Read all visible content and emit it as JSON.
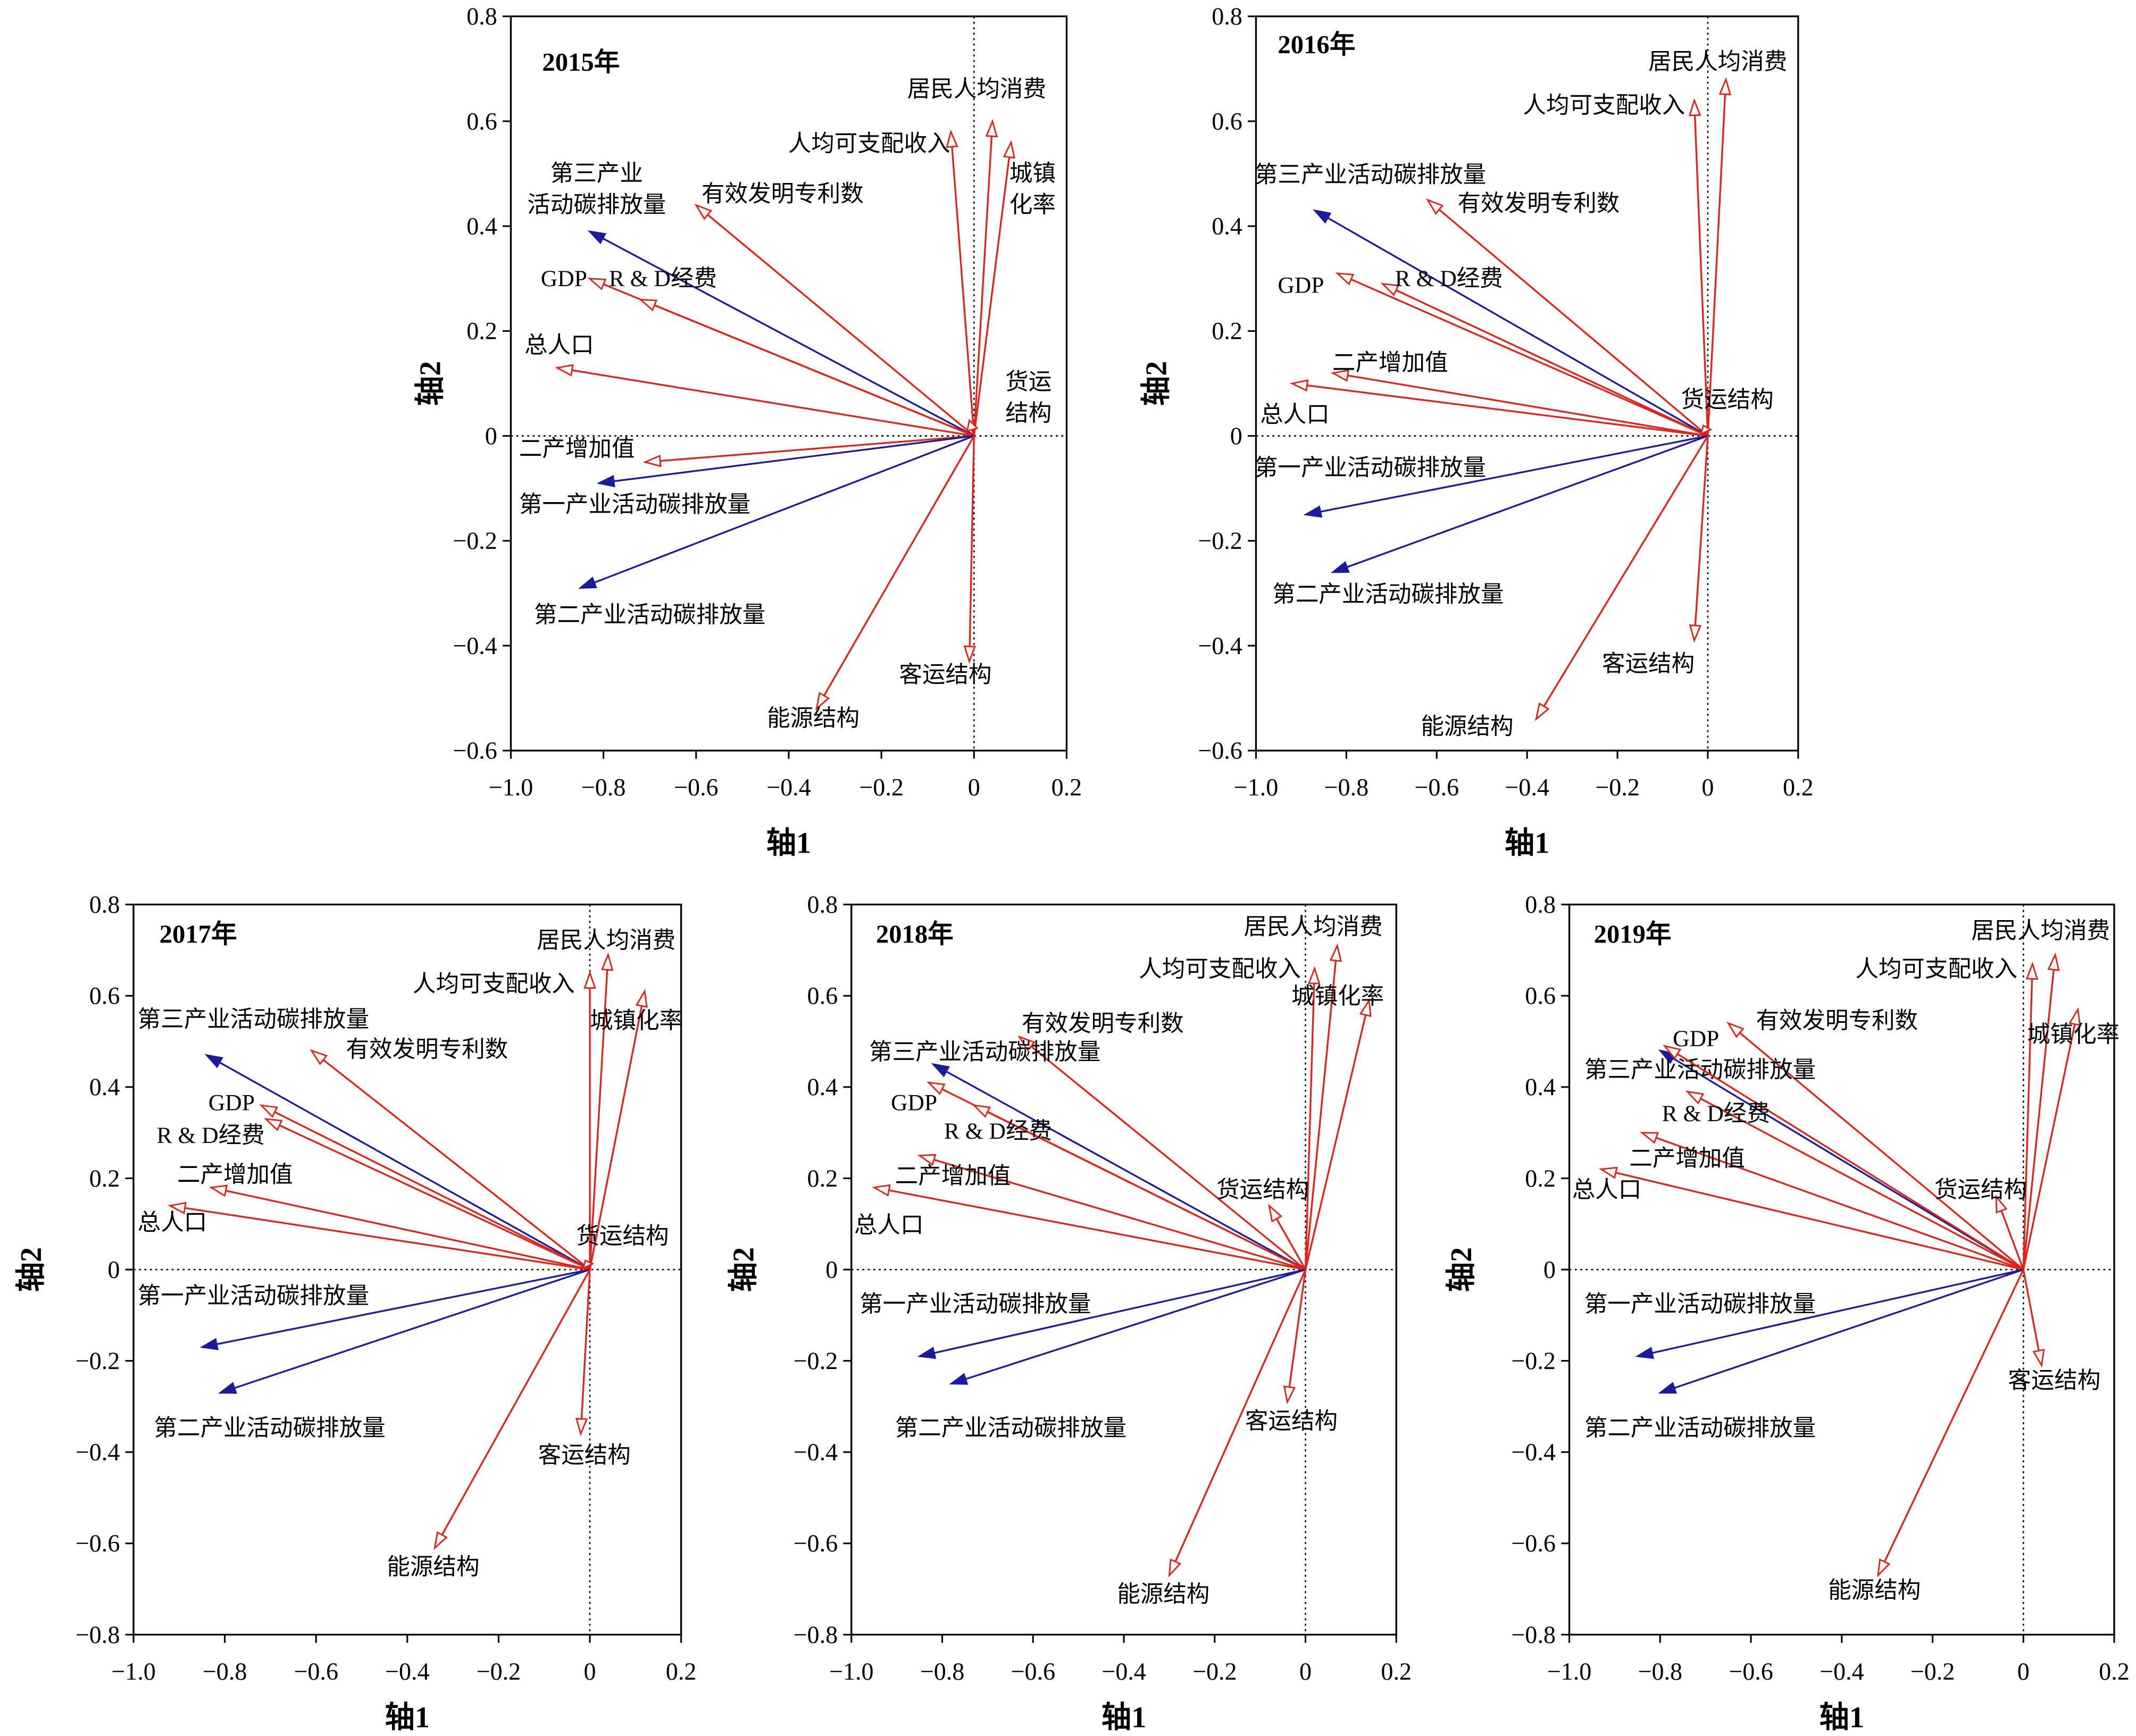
{
  "chart_data": [
    {
      "type": "scatter",
      "title": "2015年",
      "xlabel": "轴1",
      "ylabel": "轴2",
      "xlim": [
        -1.0,
        0.2
      ],
      "ylim": [
        -0.6,
        0.8
      ],
      "grid": false,
      "xtick_labels": [
        "−1.0",
        "−0.8",
        "−0.6",
        "−0.4",
        "−0.2",
        "0",
        "0.2"
      ],
      "ytick_labels": [
        "0.8",
        "0.6",
        "0.4",
        "0.2",
        "0",
        "−0.2",
        "−0.4",
        "−0.6"
      ],
      "series": [
        {
          "label": [
            "居民人均消费"
          ],
          "x": 0.04,
          "y": 0.6,
          "color": "#e2231a"
        },
        {
          "label": [
            "人均可支配收入"
          ],
          "x": -0.05,
          "y": 0.58,
          "color": "#e2231a"
        },
        {
          "label": [
            "城镇",
            "化率"
          ],
          "x": 0.08,
          "y": 0.56,
          "color": "#e2231a"
        },
        {
          "label": [
            "有效发明专利数"
          ],
          "x": -0.6,
          "y": 0.44,
          "color": "#e2231a"
        },
        {
          "label": [
            "第三产业",
            "活动碳排放量"
          ],
          "x": -0.83,
          "y": 0.39,
          "color": "#1b1b9e"
        },
        {
          "label": [
            "GDP"
          ],
          "x": -0.83,
          "y": 0.3,
          "color": "#e2231a"
        },
        {
          "label": [
            "R & D经费"
          ],
          "x": -0.72,
          "y": 0.26,
          "color": "#e2231a"
        },
        {
          "label": [
            "总人口"
          ],
          "x": -0.9,
          "y": 0.13,
          "color": "#e2231a"
        },
        {
          "label": [
            "货运",
            "结构"
          ],
          "x": -0.01,
          "y": 0.03,
          "color": "#e2231a"
        },
        {
          "label": [
            "二产增加值"
          ],
          "x": -0.71,
          "y": -0.05,
          "color": "#e2231a"
        },
        {
          "label": [
            "第一产业活动碳排放量"
          ],
          "x": -0.81,
          "y": -0.09,
          "color": "#1b1b9e"
        },
        {
          "label": [
            "第二产业活动碳排放量"
          ],
          "x": -0.85,
          "y": -0.29,
          "color": "#1b1b9e"
        },
        {
          "label": [
            "客运结构"
          ],
          "x": -0.01,
          "y": -0.43,
          "color": "#e2231a"
        },
        {
          "label": [
            "能源结构"
          ],
          "x": -0.34,
          "y": -0.52,
          "color": "#e2231a"
        }
      ]
    },
    {
      "type": "scatter",
      "title": "2016年",
      "xlabel": "轴1",
      "ylabel": "轴2",
      "xlim": [
        -1.0,
        0.2
      ],
      "ylim": [
        -0.6,
        0.8
      ],
      "grid": false,
      "xtick_labels": [
        "−1.0",
        "−0.8",
        "−0.6",
        "−0.4",
        "−0.2",
        "0",
        "0.2"
      ],
      "ytick_labels": [
        "0.8",
        "0.6",
        "0.4",
        "0.2",
        "0",
        "−0.2",
        "−0.4",
        "−0.6"
      ],
      "series": [
        {
          "label": [
            "居民人均消费"
          ],
          "x": 0.04,
          "y": 0.68,
          "color": "#e2231a"
        },
        {
          "label": [
            "人均可支配收入"
          ],
          "x": -0.03,
          "y": 0.64,
          "color": "#e2231a"
        },
        {
          "label": [
            "有效发明专利数"
          ],
          "x": -0.62,
          "y": 0.45,
          "color": "#e2231a"
        },
        {
          "label": [
            "第三产业活动碳排放量"
          ],
          "x": -0.87,
          "y": 0.43,
          "color": "#1b1b9e"
        },
        {
          "label": [
            "GDP"
          ],
          "x": -0.82,
          "y": 0.31,
          "color": "#e2231a"
        },
        {
          "label": [
            "R & D经费"
          ],
          "x": -0.72,
          "y": 0.29,
          "color": "#e2231a"
        },
        {
          "label": [
            "二产增加值"
          ],
          "x": -0.83,
          "y": 0.12,
          "color": "#e2231a"
        },
        {
          "label": [
            "总人口"
          ],
          "x": -0.92,
          "y": 0.1,
          "color": "#e2231a"
        },
        {
          "label": [
            "货运结构"
          ],
          "x": -0.01,
          "y": 0.02,
          "color": "#e2231a"
        },
        {
          "label": [
            "第一产业活动碳排放量"
          ],
          "x": -0.89,
          "y": -0.15,
          "color": "#1b1b9e"
        },
        {
          "label": [
            "第二产业活动碳排放量"
          ],
          "x": -0.83,
          "y": -0.26,
          "color": "#1b1b9e"
        },
        {
          "label": [
            "客运结构"
          ],
          "x": -0.03,
          "y": -0.39,
          "color": "#e2231a"
        },
        {
          "label": [
            "能源结构"
          ],
          "x": -0.38,
          "y": -0.54,
          "color": "#e2231a"
        }
      ]
    },
    {
      "type": "scatter",
      "title": "2017年",
      "xlabel": "轴1",
      "ylabel": "轴2",
      "xlim": [
        -1.0,
        0.2
      ],
      "ylim": [
        -0.8,
        0.8
      ],
      "grid": false,
      "xtick_labels": [
        "−1.0",
        "−0.8",
        "−0.6",
        "−0.4",
        "−0.2",
        "0",
        "0.2"
      ],
      "ytick_labels": [
        "0.8",
        "0.6",
        "0.4",
        "0.2",
        "0",
        "−0.2",
        "−0.4",
        "−0.6",
        "−0.8"
      ],
      "series": [
        {
          "label": [
            "居民人均消费"
          ],
          "x": 0.04,
          "y": 0.69,
          "color": "#e2231a"
        },
        {
          "label": [
            "人均可支配收入"
          ],
          "x": 0.0,
          "y": 0.65,
          "color": "#e2231a"
        },
        {
          "label": [
            "城镇化率"
          ],
          "x": 0.12,
          "y": 0.61,
          "color": "#e2231a"
        },
        {
          "label": [
            "有效发明专利数"
          ],
          "x": -0.61,
          "y": 0.48,
          "color": "#e2231a"
        },
        {
          "label": [
            "第三产业活动碳排放量"
          ],
          "x": -0.84,
          "y": 0.47,
          "color": "#1b1b9e"
        },
        {
          "label": [
            "GDP"
          ],
          "x": -0.72,
          "y": 0.36,
          "color": "#e2231a"
        },
        {
          "label": [
            "R & D经费"
          ],
          "x": -0.71,
          "y": 0.33,
          "color": "#e2231a"
        },
        {
          "label": [
            "二产增加值"
          ],
          "x": -0.83,
          "y": 0.18,
          "color": "#e2231a"
        },
        {
          "label": [
            "总人口"
          ],
          "x": -0.92,
          "y": 0.14,
          "color": "#e2231a"
        },
        {
          "label": [
            "货运结构"
          ],
          "x": -0.01,
          "y": 0.02,
          "color": "#e2231a"
        },
        {
          "label": [
            "第一产业活动碳排放量"
          ],
          "x": -0.85,
          "y": -0.17,
          "color": "#1b1b9e"
        },
        {
          "label": [
            "第二产业活动碳排放量"
          ],
          "x": -0.81,
          "y": -0.27,
          "color": "#1b1b9e"
        },
        {
          "label": [
            "客运结构"
          ],
          "x": -0.02,
          "y": -0.36,
          "color": "#e2231a"
        },
        {
          "label": [
            "能源结构"
          ],
          "x": -0.34,
          "y": -0.61,
          "color": "#e2231a"
        }
      ]
    },
    {
      "type": "scatter",
      "title": "2018年",
      "xlabel": "轴1",
      "ylabel": "轴2",
      "xlim": [
        -1.0,
        0.2
      ],
      "ylim": [
        -0.8,
        0.8
      ],
      "grid": false,
      "xtick_labels": [
        "−1.0",
        "−0.8",
        "−0.6",
        "−0.4",
        "−0.2",
        "0",
        "0.2"
      ],
      "ytick_labels": [
        "0.8",
        "0.6",
        "0.4",
        "0.2",
        "0",
        "−0.2",
        "−0.4",
        "−0.6",
        "−0.8"
      ],
      "series": [
        {
          "label": [
            "居民人均消费"
          ],
          "x": 0.07,
          "y": 0.71,
          "color": "#e2231a"
        },
        {
          "label": [
            "人均可支配收入"
          ],
          "x": 0.02,
          "y": 0.66,
          "color": "#e2231a"
        },
        {
          "label": [
            "城镇化率"
          ],
          "x": 0.14,
          "y": 0.59,
          "color": "#e2231a"
        },
        {
          "label": [
            "有效发明专利数"
          ],
          "x": -0.63,
          "y": 0.51,
          "color": "#e2231a"
        },
        {
          "label": [
            "第三产业活动碳排放量"
          ],
          "x": -0.82,
          "y": 0.45,
          "color": "#1b1b9e"
        },
        {
          "label": [
            "GDP"
          ],
          "x": -0.83,
          "y": 0.41,
          "color": "#e2231a"
        },
        {
          "label": [
            "R & D经费"
          ],
          "x": -0.73,
          "y": 0.36,
          "color": "#e2231a"
        },
        {
          "label": [
            "二产增加值"
          ],
          "x": -0.85,
          "y": 0.25,
          "color": "#e2231a"
        },
        {
          "label": [
            "总人口"
          ],
          "x": -0.95,
          "y": 0.18,
          "color": "#e2231a"
        },
        {
          "label": [
            "货运结构"
          ],
          "x": -0.08,
          "y": 0.14,
          "color": "#e2231a"
        },
        {
          "label": [
            "第一产业活动碳排放量"
          ],
          "x": -0.85,
          "y": -0.19,
          "color": "#1b1b9e"
        },
        {
          "label": [
            "第二产业活动碳排放量"
          ],
          "x": -0.78,
          "y": -0.25,
          "color": "#1b1b9e"
        },
        {
          "label": [
            "客运结构"
          ],
          "x": -0.04,
          "y": -0.29,
          "color": "#e2231a"
        },
        {
          "label": [
            "能源结构"
          ],
          "x": -0.3,
          "y": -0.67,
          "color": "#e2231a"
        }
      ]
    },
    {
      "type": "scatter",
      "title": "2019年",
      "xlabel": "轴1",
      "ylabel": "轴2",
      "xlim": [
        -1.0,
        0.2
      ],
      "ylim": [
        -0.8,
        0.8
      ],
      "grid": false,
      "xtick_labels": [
        "−1.0",
        "−0.8",
        "−0.6",
        "−0.4",
        "−0.2",
        "0",
        "0.2"
      ],
      "ytick_labels": [
        "0.8",
        "0.6",
        "0.4",
        "0.2",
        "0",
        "−0.2",
        "−0.4",
        "−0.6",
        "−0.8"
      ],
      "series": [
        {
          "label": [
            "居民人均消费"
          ],
          "x": 0.07,
          "y": 0.69,
          "color": "#e2231a"
        },
        {
          "label": [
            "人均可支配收入"
          ],
          "x": 0.02,
          "y": 0.67,
          "color": "#e2231a"
        },
        {
          "label": [
            "城镇化率"
          ],
          "x": 0.12,
          "y": 0.57,
          "color": "#e2231a"
        },
        {
          "label": [
            "有效发明专利数"
          ],
          "x": -0.65,
          "y": 0.54,
          "color": "#e2231a"
        },
        {
          "label": [
            "第三产业活动碳排放量"
          ],
          "x": -0.8,
          "y": 0.48,
          "color": "#1b1b9e"
        },
        {
          "label": [
            "GDP"
          ],
          "x": -0.79,
          "y": 0.49,
          "color": "#e2231a"
        },
        {
          "label": [
            "R & D经费"
          ],
          "x": -0.74,
          "y": 0.39,
          "color": "#e2231a"
        },
        {
          "label": [
            "二产增加值"
          ],
          "x": -0.84,
          "y": 0.3,
          "color": "#e2231a"
        },
        {
          "label": [
            "总人口"
          ],
          "x": -0.93,
          "y": 0.22,
          "color": "#e2231a"
        },
        {
          "label": [
            "货运结构"
          ],
          "x": -0.06,
          "y": 0.16,
          "color": "#e2231a"
        },
        {
          "label": [
            "第一产业活动碳排放量"
          ],
          "x": -0.85,
          "y": -0.19,
          "color": "#1b1b9e"
        },
        {
          "label": [
            "第二产业活动碳排放量"
          ],
          "x": -0.8,
          "y": -0.27,
          "color": "#1b1b9e"
        },
        {
          "label": [
            "客运结构"
          ],
          "x": 0.04,
          "y": -0.21,
          "color": "#e2231a"
        },
        {
          "label": [
            "能源结构"
          ],
          "x": -0.32,
          "y": -0.67,
          "color": "#e2231a"
        }
      ]
    }
  ]
}
